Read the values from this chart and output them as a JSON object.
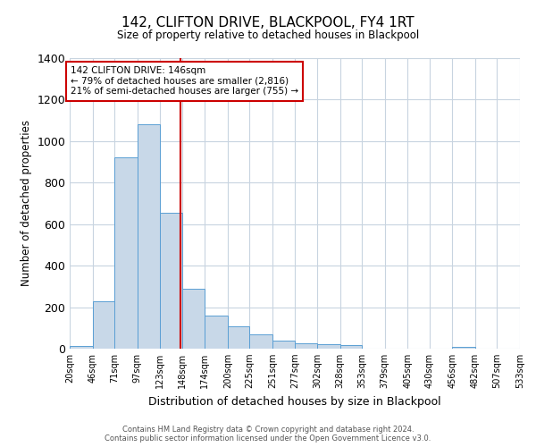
{
  "title": "142, CLIFTON DRIVE, BLACKPOOL, FY4 1RT",
  "subtitle": "Size of property relative to detached houses in Blackpool",
  "xlabel": "Distribution of detached houses by size in Blackpool",
  "ylabel": "Number of detached properties",
  "bin_edges": [
    20,
    46,
    71,
    97,
    123,
    148,
    174,
    200,
    225,
    251,
    277,
    302,
    328,
    353,
    379,
    405,
    430,
    456,
    482,
    507,
    533
  ],
  "bar_heights": [
    15,
    228,
    920,
    1080,
    655,
    290,
    158,
    108,
    70,
    40,
    25,
    20,
    18,
    0,
    0,
    0,
    0,
    10,
    0,
    0
  ],
  "bar_color": "#c8d8e8",
  "bar_edge_color": "#5a9fd4",
  "property_size": 146,
  "vline_color": "#cc0000",
  "annotation_line1": "142 CLIFTON DRIVE: 146sqm",
  "annotation_line2": "← 79% of detached houses are smaller (2,816)",
  "annotation_line3": "21% of semi-detached houses are larger (755) →",
  "annotation_box_edge": "#cc0000",
  "ylim": [
    0,
    1400
  ],
  "yticks": [
    0,
    200,
    400,
    600,
    800,
    1000,
    1200,
    1400
  ],
  "footer_line1": "Contains HM Land Registry data © Crown copyright and database right 2024.",
  "footer_line2": "Contains public sector information licensed under the Open Government Licence v3.0.",
  "background_color": "#ffffff",
  "grid_color": "#c8d4e0"
}
